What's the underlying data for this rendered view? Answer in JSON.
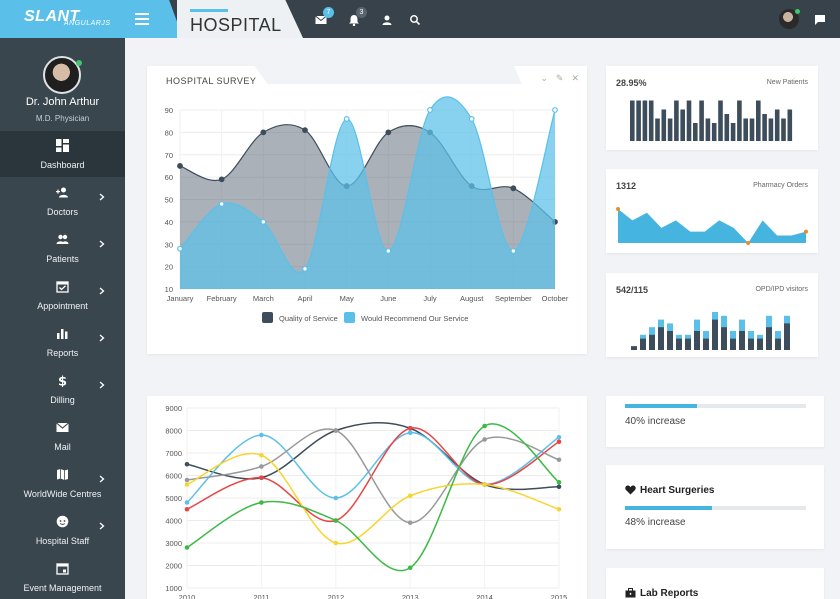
{
  "app": {
    "logo": "SLANT",
    "logo_sub": "ANGULARJS",
    "page_title": "HOSPITAL",
    "accent_color": "#5bc0e9"
  },
  "topbar": {
    "icons": [
      {
        "name": "mail-icon",
        "badge": "7"
      },
      {
        "name": "bell-icon",
        "badge": "3"
      },
      {
        "name": "user-icon",
        "badge": ""
      },
      {
        "name": "search-icon",
        "badge": ""
      },
      {
        "name": "chat-icon",
        "badge": ""
      }
    ]
  },
  "profile": {
    "name": "Dr. John Arthur",
    "role": "M.D. Physician"
  },
  "sidebar": {
    "items": [
      {
        "label": "Dashboard",
        "icon": "dashboard-icon",
        "active": true,
        "has_submenu": false
      },
      {
        "label": "Doctors",
        "icon": "add-user-icon",
        "active": false,
        "has_submenu": true
      },
      {
        "label": "Patients",
        "icon": "users-icon",
        "active": false,
        "has_submenu": true
      },
      {
        "label": "Appointment",
        "icon": "calendar-check-icon",
        "active": false,
        "has_submenu": true
      },
      {
        "label": "Reports",
        "icon": "bar-chart-icon",
        "active": false,
        "has_submenu": true
      },
      {
        "label": "Dilling",
        "icon": "dollar-icon",
        "active": false,
        "has_submenu": true
      },
      {
        "label": "Mail",
        "icon": "mail-icon",
        "active": false,
        "has_submenu": false
      },
      {
        "label": "WorldWide Centres",
        "icon": "map-icon",
        "active": false,
        "has_submenu": true
      },
      {
        "label": "Hospital Staff",
        "icon": "face-icon",
        "active": false,
        "has_submenu": true
      },
      {
        "label": "Event Management",
        "icon": "event-icon",
        "active": false,
        "has_submenu": false
      }
    ]
  },
  "survey": {
    "title": "HOSPITAL SURVEY"
  },
  "stats": [
    {
      "value": "28.95%",
      "label": "New Patients"
    },
    {
      "value": "1312",
      "label": "Pharmacy Orders"
    },
    {
      "value": "542/115",
      "label": "OPD/IPD visitors"
    }
  ],
  "progress_cards": [
    {
      "title": "",
      "text": "40% increase",
      "percent": 40
    },
    {
      "title": "Heart Surgeries",
      "text": "48% increase",
      "percent": 48
    }
  ],
  "lab_reports": {
    "title": "Lab Reports"
  },
  "chart_data": [
    {
      "type": "area",
      "categories": [
        "January",
        "February",
        "March",
        "April",
        "May",
        "June",
        "July",
        "August",
        "September",
        "October"
      ],
      "ylim": [
        10,
        90
      ],
      "yticks": [
        10,
        20,
        30,
        40,
        50,
        60,
        70,
        80,
        90
      ],
      "series": [
        {
          "name": "Quality of Service",
          "color": "#3d4d5b",
          "values": [
            65,
            59,
            80,
            81,
            56,
            80,
            80,
            56,
            55,
            40
          ]
        },
        {
          "name": "Would Recommend Our Service",
          "color": "#5bc0e9",
          "values": [
            28,
            48,
            40,
            19,
            86,
            27,
            90,
            86,
            27,
            90
          ]
        }
      ],
      "legend": "bottom",
      "grid": true
    },
    {
      "type": "bar",
      "title": "New Patients",
      "values": [
        9,
        9,
        9,
        9,
        5,
        7,
        5,
        9,
        7,
        9,
        4,
        9,
        5,
        4,
        9,
        6,
        4,
        9,
        5,
        5,
        9,
        6,
        5,
        7,
        5,
        7
      ],
      "color": "#3d4d5b"
    },
    {
      "type": "area",
      "title": "Pharmacy Orders",
      "values": [
        9,
        6,
        8,
        4,
        6,
        3,
        3,
        6,
        4,
        0,
        6,
        2,
        2,
        3
      ],
      "color": "#45b5e0",
      "marker_color": "#f08a24"
    },
    {
      "type": "bar",
      "title": "OPD/IPD visitors",
      "series": [
        {
          "name": "OPD",
          "color": "#3d4d5b",
          "values": [
            1,
            3,
            4,
            6,
            5,
            3,
            3,
            5,
            3,
            8,
            6,
            3,
            5,
            3,
            3,
            6,
            3,
            7
          ]
        },
        {
          "name": "IPD",
          "color": "#5bc0e9",
          "values": [
            1,
            4,
            6,
            8,
            7,
            4,
            4,
            8,
            5,
            10,
            9,
            5,
            8,
            5,
            4,
            9,
            5,
            9
          ]
        }
      ]
    },
    {
      "type": "line",
      "x": [
        2010,
        2011,
        2012,
        2013,
        2014,
        2015
      ],
      "ylim": [
        1000,
        9000
      ],
      "yticks": [
        1000,
        2000,
        3000,
        4000,
        5000,
        6000,
        7000,
        8000,
        9000
      ],
      "grid": true,
      "series": [
        {
          "color": "#3d4d5b",
          "values": [
            6500,
            5900,
            8000,
            8100,
            5600,
            5500
          ]
        },
        {
          "color": "#5bc0e9",
          "values": [
            4800,
            7800,
            5000,
            7900,
            5600,
            7700
          ]
        },
        {
          "color": "#e84545",
          "values": [
            4500,
            5900,
            4000,
            8100,
            5600,
            7500
          ]
        },
        {
          "color": "#999999",
          "values": [
            5800,
            6400,
            8000,
            3900,
            7600,
            6700
          ]
        },
        {
          "color": "#f7d531",
          "values": [
            5600,
            6900,
            3000,
            5100,
            5600,
            4500
          ]
        },
        {
          "color": "#3dba46",
          "values": [
            2800,
            4800,
            4000,
            1900,
            8200,
            5700
          ]
        }
      ]
    }
  ]
}
